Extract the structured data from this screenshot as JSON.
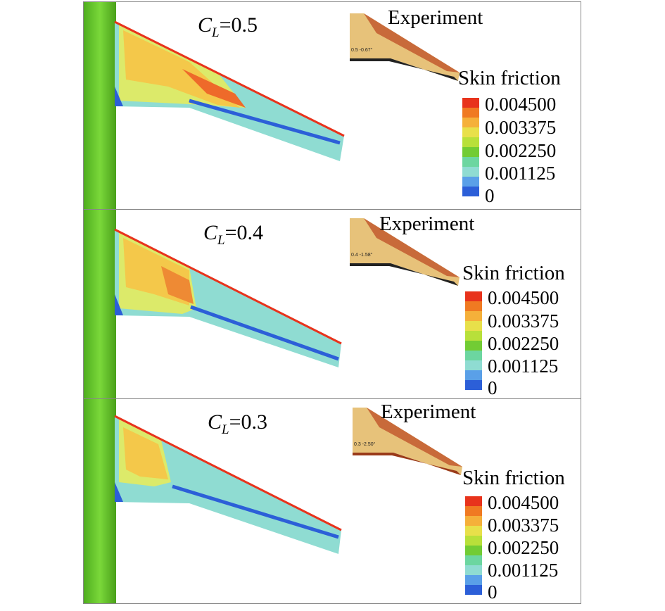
{
  "panels": [
    {
      "cl_symbol": "C",
      "cl_sub": "L",
      "cl_value": "=0.5",
      "experiment_title": "Experiment",
      "experiment_tag": "0.5  -0.67°",
      "legend_title": "Skin friction",
      "legend_labels": [
        "0.004500",
        "0.003375",
        "0.002250",
        "0.001125",
        "0"
      ]
    },
    {
      "cl_symbol": "C",
      "cl_sub": "L",
      "cl_value": "=0.4",
      "experiment_title": "Experiment",
      "experiment_tag": "0.4  -1.58°",
      "legend_title": "Skin friction",
      "legend_labels": [
        "0.004500",
        "0.003375",
        "0.002250",
        "0.001125",
        "0"
      ]
    },
    {
      "cl_symbol": "C",
      "cl_sub": "L",
      "cl_value": "=0.3",
      "experiment_title": "Experiment",
      "experiment_tag": "0.3  -2.50°",
      "legend_title": "Skin friction",
      "legend_labels": [
        "0.004500",
        "0.003375",
        "0.002250",
        "0.001125",
        "0"
      ]
    }
  ],
  "colors": {
    "fuselage": "#66c62a",
    "wing_base": "#8fdcd2",
    "leading_edge": "#e8331c",
    "separation": "#d8e85a",
    "hot": "#f08a2a",
    "vortex_line": "#2c5fd8",
    "exp_light": "#e8c878",
    "exp_dark": "#b8502a"
  }
}
